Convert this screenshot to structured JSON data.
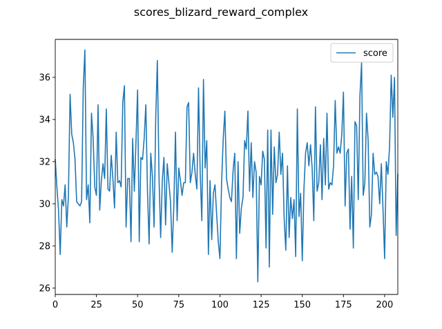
{
  "chart_data": {
    "type": "line",
    "title": "scores_blizard_reward_complex",
    "xlabel": "",
    "ylabel": "",
    "xlim": [
      0,
      208
    ],
    "ylim": [
      25.7,
      37.8
    ],
    "x_ticks": [
      0,
      25,
      50,
      75,
      100,
      125,
      150,
      175,
      200
    ],
    "y_ticks": [
      26,
      28,
      30,
      32,
      34,
      36
    ],
    "grid": false,
    "legend_position": "top-right",
    "line_color": "#1f77b4",
    "series": [
      {
        "name": "score",
        "values": [
          32.1,
          30.8,
          29.7,
          27.6,
          30.2,
          29.9,
          30.9,
          28.9,
          30.4,
          35.2,
          33.3,
          32.9,
          32.1,
          30.1,
          30.0,
          29.9,
          30.1,
          35.5,
          37.3,
          30.2,
          30.9,
          29.1,
          34.3,
          33.1,
          30.8,
          30.4,
          34.7,
          29.7,
          31.1,
          31.9,
          31.2,
          34.5,
          30.7,
          30.6,
          32.3,
          31.2,
          29.8,
          33.4,
          31.0,
          31.1,
          30.8,
          34.8,
          35.6,
          28.9,
          31.2,
          31.2,
          28.2,
          33.1,
          30.6,
          32.9,
          35.4,
          28.2,
          32.2,
          32.1,
          33.1,
          34.7,
          30.6,
          28.1,
          32.4,
          31.3,
          28.9,
          34.0,
          36.8,
          31.3,
          28.4,
          31.1,
          32.2,
          29.0,
          31.9,
          31.0,
          30.1,
          27.7,
          29.9,
          33.4,
          29.2,
          31.7,
          31.1,
          30.4,
          31.0,
          31.0,
          34.6,
          34.8,
          31.0,
          31.5,
          32.4,
          31.4,
          30.7,
          35.5,
          31.5,
          29.2,
          35.9,
          31.7,
          33.0,
          27.6,
          31.1,
          28.3,
          30.5,
          30.9,
          29.5,
          28.2,
          27.4,
          31.0,
          33.1,
          34.4,
          31.2,
          30.7,
          30.3,
          30.1,
          31.6,
          32.4,
          27.4,
          32.0,
          28.6,
          29.8,
          30.3,
          33.0,
          32.6,
          34.4,
          30.6,
          32.9,
          30.3,
          32.0,
          31.5,
          26.3,
          31.3,
          30.9,
          32.5,
          32.1,
          27.9,
          33.5,
          27.0,
          33.5,
          29.5,
          32.7,
          31.0,
          31.4,
          33.4,
          31.4,
          32.4,
          29.3,
          27.8,
          31.8,
          28.4,
          30.3,
          29.3,
          30.2,
          27.5,
          34.5,
          29.4,
          30.5,
          27.3,
          30.7,
          32.4,
          32.9,
          31.8,
          32.8,
          31.7,
          29.2,
          34.6,
          30.6,
          31.0,
          32.8,
          30.2,
          33.1,
          30.9,
          34.3,
          30.7,
          31.0,
          30.9,
          31.8,
          34.9,
          32.4,
          32.7,
          32.4,
          33.3,
          35.3,
          29.9,
          32.4,
          32.6,
          28.8,
          31.3,
          27.9,
          33.9,
          33.7,
          30.2,
          35.1,
          36.7,
          30.4,
          31.0,
          34.3,
          33.0,
          28.9,
          29.5,
          32.4,
          31.4,
          31.5,
          31.3,
          30.0,
          31.9,
          29.8,
          27.4,
          32.0,
          31.4,
          32.7,
          36.1,
          34.1,
          36.0,
          28.5,
          31.4
        ]
      }
    ]
  }
}
